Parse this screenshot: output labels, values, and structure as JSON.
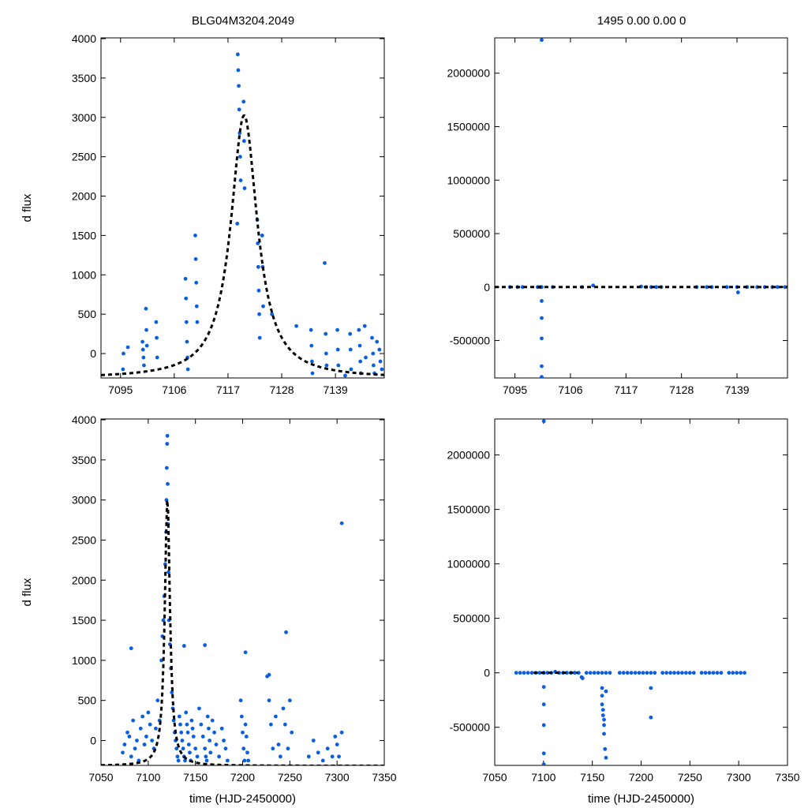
{
  "page": {
    "event_name": "BLG04M3204.2049",
    "fit_summary": "1495  0.00  0.00  0",
    "point_color": "#0a5ee0",
    "model_color": "#000000"
  },
  "chart_data": [
    {
      "id": "zoom_flux",
      "type": "scatter",
      "title": "BLG04M3204.2049",
      "xlabel": "",
      "ylabel": "d flux",
      "xlim": [
        7091,
        7149
      ],
      "ylim": [
        -310,
        4010
      ],
      "xticks": [
        7095,
        7106,
        7117,
        7128,
        7139
      ],
      "yticks": [
        0,
        500,
        1000,
        1500,
        2000,
        2500,
        3000,
        3500,
        4000
      ],
      "tick_labels_x": [
        "7095",
        "7106",
        "7117",
        "7128",
        "7139"
      ],
      "tick_labels_y": [
        "0",
        "500",
        "1000",
        "1500",
        "2000",
        "2500",
        "3000",
        "3500",
        "4000"
      ],
      "series": [
        {
          "name": "observations",
          "kind": "points",
          "x": [
            7095.5,
            7095.6,
            7096.5,
            7099.5,
            7099.6,
            7099.7,
            7099.8,
            7100.2,
            7100.3,
            7100.4,
            7102.3,
            7102.4,
            7102.5,
            7108.3,
            7108.4,
            7108.5,
            7108.6,
            7108.7,
            7108.8,
            7110.3,
            7110.4,
            7110.5,
            7110.6,
            7110.7,
            7119.0,
            7119.1,
            7119.2,
            7119.3,
            7119.4,
            7119.5,
            7119.6,
            7120.2,
            7120.3,
            7120.4,
            7123.0,
            7123.1,
            7123.2,
            7123.3,
            7123.4,
            7123.5,
            7124.0,
            7124.1,
            7124.2,
            7126.0,
            7134.0,
            7134.1,
            7134.2,
            7134.3,
            7136.8,
            7137.0,
            7137.1,
            7137.2,
            7139.4,
            7139.5,
            7139.6,
            7142.0,
            7142.1,
            7142.2,
            7143.8,
            7144.0,
            7144.1,
            7144.2,
            7145.0,
            7145.2,
            7146.5,
            7146.7,
            7146.8,
            7147.0,
            7147.5,
            7148.0,
            7148.2,
            7148.5,
            7141.0,
            7131.0,
            7118.9
          ],
          "y": [
            -200,
            0,
            80,
            150,
            50,
            -50,
            -150,
            570,
            300,
            100,
            400,
            200,
            -50,
            950,
            700,
            400,
            150,
            -50,
            -200,
            1500,
            1200,
            900,
            600,
            400,
            3800,
            3600,
            3400,
            3100,
            2800,
            2500,
            2200,
            3200,
            2700,
            2100,
            1700,
            1400,
            1100,
            800,
            500,
            200,
            1500,
            1100,
            600,
            500,
            300,
            100,
            -100,
            -250,
            1150,
            250,
            0,
            -150,
            300,
            50,
            -150,
            250,
            50,
            -200,
            300,
            100,
            -100,
            -250,
            350,
            -50,
            200,
            0,
            -150,
            -250,
            150,
            50,
            -100,
            -200,
            -280,
            350,
            1650
          ],
          "color": "#0a5ee0"
        },
        {
          "name": "model",
          "kind": "dashed-line",
          "peak_t": 7120.3,
          "peak_flux": 3025,
          "baseline": -315,
          "width_days": 3.3,
          "color": "#000000"
        }
      ]
    },
    {
      "id": "zoom_residuals",
      "type": "scatter",
      "title": "1495  0.00  0.00  0",
      "xlabel": "",
      "ylabel": "",
      "xlim": [
        7091,
        7149
      ],
      "ylim": [
        -850000,
        2330000
      ],
      "xticks": [
        7095,
        7106,
        7117,
        7128,
        7139
      ],
      "yticks": [
        -500000,
        0,
        500000,
        1000000,
        1500000,
        2000000
      ],
      "tick_labels_x": [
        "7095",
        "7106",
        "7117",
        "7128",
        "7139"
      ],
      "tick_labels_y": [
        "-500000",
        "0",
        "500000",
        "1000000",
        "1500000",
        "2000000"
      ],
      "series": [
        {
          "name": "residuals",
          "kind": "points",
          "x": [
            7094.0,
            7095.5,
            7096.5,
            7099.5,
            7100.0,
            7100.3,
            7100.3,
            7100.3,
            7100.3,
            7100.3,
            7100.3,
            7102.5,
            7108.3,
            7110.5,
            7120.0,
            7121.0,
            7122.0,
            7123.0,
            7124.0,
            7131.0,
            7133.0,
            7134.0,
            7137.0,
            7139.0,
            7139.2,
            7141.0,
            7143.0,
            7144.5,
            7146.0,
            7147.0,
            7148.5,
            7100.3
          ],
          "y": [
            0,
            0,
            0,
            0,
            0,
            -130000,
            -290000,
            -480000,
            -740000,
            -840000,
            0,
            0,
            0,
            15000,
            5000,
            0,
            0,
            0,
            0,
            0,
            0,
            0,
            0,
            0,
            -50000,
            0,
            0,
            0,
            0,
            0,
            0,
            2310000
          ],
          "color": "#0a5ee0"
        },
        {
          "name": "model",
          "kind": "dashed-flat",
          "value": 0,
          "color": "#000000"
        }
      ]
    },
    {
      "id": "full_flux",
      "type": "scatter",
      "title": "",
      "xlabel": "time (HJD-2450000)",
      "ylabel": "d flux",
      "xlim": [
        7050,
        7350
      ],
      "ylim": [
        -310,
        4010
      ],
      "xticks": [
        7050,
        7100,
        7150,
        7200,
        7250,
        7300,
        7350
      ],
      "yticks": [
        0,
        500,
        1000,
        1500,
        2000,
        2500,
        3000,
        3500,
        4000
      ],
      "tick_labels_x": [
        "7050",
        "7100",
        "7150",
        "7200",
        "7250",
        "7300",
        "7350"
      ],
      "tick_labels_y": [
        "0",
        "500",
        "1000",
        "1500",
        "2000",
        "2500",
        "3000",
        "3500",
        "4000"
      ],
      "series": [
        {
          "name": "observations",
          "kind": "points",
          "x": [
            7073,
            7075,
            7078,
            7080,
            7082,
            7084,
            7086,
            7088,
            7090,
            7092,
            7094,
            7096,
            7098,
            7100,
            7102,
            7104,
            7106,
            7108,
            7110,
            7112,
            7114,
            7115,
            7116,
            7117,
            7118,
            7119,
            7119.3,
            7119.6,
            7120,
            7120.3,
            7120.6,
            7121,
            7121.5,
            7122,
            7123,
            7124,
            7125,
            7126,
            7127,
            7128,
            7129,
            7130,
            7131,
            7132,
            7133,
            7134,
            7135,
            7136,
            7137,
            7138,
            7139,
            7140,
            7141,
            7142,
            7143,
            7144,
            7145,
            7146,
            7147,
            7148,
            7150,
            7152,
            7154,
            7156,
            7158,
            7160,
            7161,
            7162,
            7163,
            7164,
            7165,
            7166,
            7168,
            7170,
            7172,
            7175,
            7178,
            7180,
            7182,
            7184,
            7198,
            7199,
            7200,
            7201,
            7202,
            7203,
            7204,
            7205,
            7206,
            7226,
            7228,
            7230,
            7232,
            7235,
            7238,
            7240,
            7243,
            7245,
            7248,
            7250,
            7252,
            7270,
            7275,
            7280,
            7285,
            7290,
            7295,
            7298,
            7300,
            7302,
            7305,
            7082,
            7138,
            7160,
            7203,
            7228,
            7246,
            7305
          ],
          "y": [
            -150,
            -50,
            100,
            50,
            -200,
            250,
            -100,
            0,
            -250,
            150,
            300,
            -50,
            50,
            350,
            200,
            0,
            -100,
            150,
            500,
            250,
            1000,
            1300,
            1500,
            1800,
            2200,
            2600,
            3000,
            3400,
            3700,
            3800,
            3200,
            2700,
            2100,
            1500,
            1200,
            900,
            600,
            400,
            250,
            100,
            0,
            -100,
            -200,
            -250,
            300,
            200,
            100,
            0,
            -100,
            -200,
            -250,
            350,
            200,
            100,
            -50,
            -150,
            -250,
            250,
            150,
            50,
            -100,
            -200,
            400,
            200,
            50,
            -100,
            -200,
            -250,
            300,
            150,
            0,
            -150,
            250,
            100,
            -50,
            -200,
            150,
            0,
            -100,
            -250,
            500,
            300,
            100,
            -100,
            -250,
            200,
            50,
            -150,
            -250,
            800,
            500,
            200,
            -100,
            300,
            -50,
            -200,
            400,
            200,
            -100,
            500,
            100,
            -200,
            0,
            -150,
            -250,
            -100,
            -200,
            50,
            -50,
            -200,
            100,
            1150,
            1180,
            1190,
            1100,
            820,
            1350,
            2710
          ],
          "color": "#0a5ee0"
        },
        {
          "name": "model",
          "kind": "dashed-line",
          "peak_t": 7120.3,
          "peak_flux": 3025,
          "baseline": -315,
          "width_days": 3.3,
          "color": "#000000"
        }
      ]
    },
    {
      "id": "full_residuals",
      "type": "scatter",
      "title": "",
      "xlabel": "time (HJD-2450000)",
      "ylabel": "",
      "xlim": [
        7050,
        7350
      ],
      "ylim": [
        -850000,
        2330000
      ],
      "xticks": [
        7050,
        7100,
        7150,
        7200,
        7250,
        7300,
        7350
      ],
      "yticks": [
        -500000,
        0,
        500000,
        1000000,
        1500000,
        2000000
      ],
      "tick_labels_x": [
        "7050",
        "7100",
        "7150",
        "7200",
        "7250",
        "7300",
        "7350"
      ],
      "tick_labels_y": [
        "-500000",
        "0",
        "500000",
        "1000000",
        "1500000",
        "2000000"
      ],
      "series": [
        {
          "name": "residuals",
          "kind": "points",
          "x": [
            7072,
            7076,
            7080,
            7084,
            7088,
            7092,
            7096,
            7100,
            7104,
            7108,
            7112,
            7116,
            7120,
            7124,
            7128,
            7132,
            7136,
            7140,
            7144,
            7148,
            7152,
            7156,
            7160,
            7164,
            7168,
            7178,
            7182,
            7186,
            7190,
            7194,
            7198,
            7202,
            7206,
            7210,
            7214,
            7222,
            7226,
            7230,
            7234,
            7238,
            7242,
            7246,
            7250,
            7254,
            7262,
            7266,
            7270,
            7274,
            7278,
            7282,
            7290,
            7294,
            7298,
            7302,
            7306,
            7100.3,
            7100.3,
            7100.3,
            7100.3,
            7100.3,
            7100.3,
            7139,
            7160,
            7160,
            7160,
            7161,
            7161,
            7162,
            7162,
            7162,
            7163,
            7164,
            7164,
            7210,
            7210,
            7100.3
          ],
          "y": [
            0,
            0,
            0,
            0,
            0,
            0,
            0,
            0,
            0,
            0,
            10000,
            0,
            0,
            0,
            0,
            0,
            0,
            -50000,
            0,
            0,
            0,
            0,
            0,
            0,
            0,
            0,
            0,
            0,
            0,
            0,
            0,
            0,
            0,
            0,
            0,
            0,
            0,
            0,
            0,
            0,
            0,
            0,
            0,
            0,
            0,
            0,
            0,
            0,
            0,
            0,
            0,
            0,
            0,
            0,
            0,
            -130000,
            -290000,
            -480000,
            -740000,
            -840000,
            0,
            -40000,
            -140000,
            -210000,
            -290000,
            -340000,
            -390000,
            -430000,
            -480000,
            -560000,
            -700000,
            -780000,
            -170000,
            -140000,
            -410000,
            2310000
          ],
          "color": "#0a5ee0"
        },
        {
          "name": "model",
          "kind": "dashed-flat-range",
          "value": 0,
          "x_from": 7090,
          "x_to": 7135,
          "color": "#000000"
        }
      ]
    }
  ]
}
